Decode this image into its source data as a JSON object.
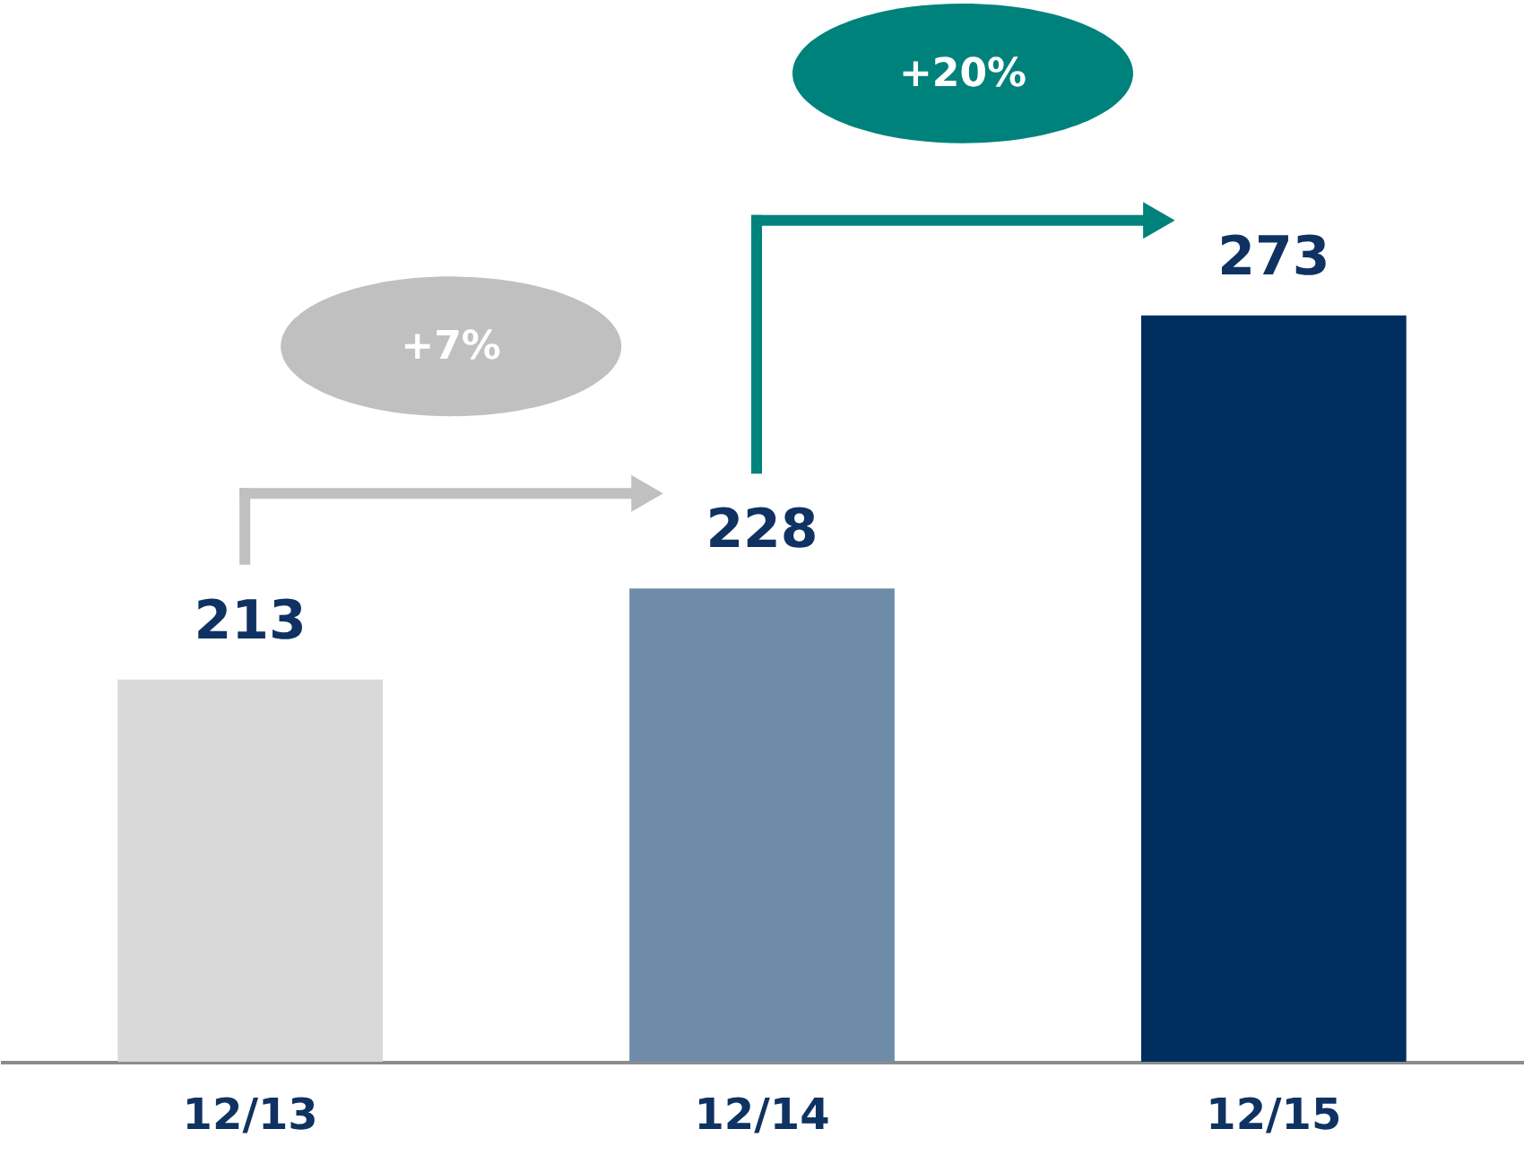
{
  "chart_data": {
    "type": "bar",
    "categories": [
      "12/13",
      "12/14",
      "12/15"
    ],
    "values": [
      213,
      228,
      273
    ],
    "colors": [
      "#d9d9d9",
      "#6e8ca8",
      "#002f5f"
    ],
    "ylim": [
      150,
      325
    ],
    "data_labels": true,
    "grid": false,
    "tick_labels": "x",
    "annotations": [
      "+7%",
      "+20%"
    ]
  }
}
